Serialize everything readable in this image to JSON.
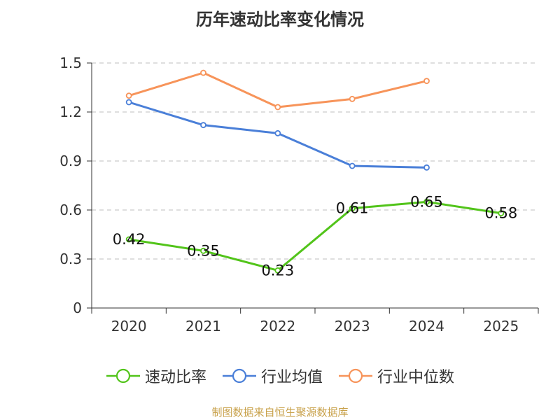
{
  "chart_data": {
    "type": "line",
    "title": "历年速动比率变化情况",
    "categories": [
      "2020",
      "2021",
      "2022",
      "2023",
      "2024",
      "2025"
    ],
    "ylim": [
      0,
      1.5
    ],
    "yticks": [
      "0",
      "0.3",
      "0.6",
      "0.9",
      "1.2",
      "1.5"
    ],
    "grid": true,
    "legend_position": "bottom",
    "series": [
      {
        "name": "速动比率",
        "color": "#52c41a",
        "values": [
          0.42,
          0.35,
          0.23,
          0.61,
          0.65,
          0.58
        ],
        "labels": [
          "0.42",
          "0.35",
          "0.23",
          "0.61",
          "0.65",
          "0.58"
        ]
      },
      {
        "name": "行业均值",
        "color": "#4a7fd8",
        "values": [
          1.26,
          1.12,
          1.07,
          0.87,
          0.86,
          null
        ]
      },
      {
        "name": "行业中位数",
        "color": "#f7945a",
        "values": [
          1.3,
          1.44,
          1.23,
          1.28,
          1.39,
          null
        ]
      }
    ]
  },
  "source": "制图数据来自恒生聚源数据库"
}
